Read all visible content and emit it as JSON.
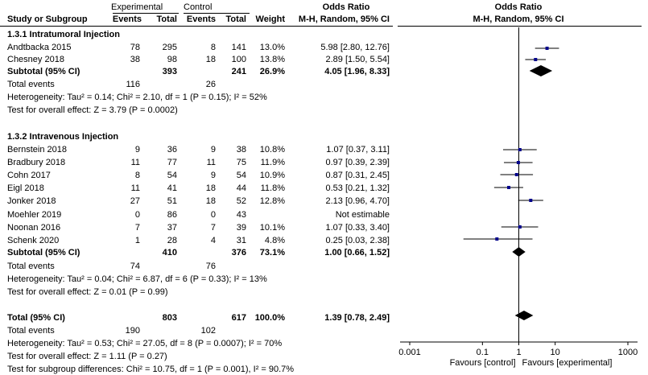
{
  "header": {
    "experimental": "Experimental",
    "control": "Control",
    "odds_ratio": "Odds Ratio",
    "odds_ratio_plot": "Odds Ratio",
    "study": "Study or Subgroup",
    "events": "Events",
    "total": "Total",
    "events2": "Events",
    "total2": "Total",
    "weight": "Weight",
    "method": "M-H, Random, 95% CI",
    "method_plot": "M-H, Random, 95% CI"
  },
  "groups": [
    {
      "title": "1.3.1 Intratumoral Injection",
      "studies": [
        {
          "name": "Andtbacka 2015",
          "e_ev": "78",
          "e_tot": "295",
          "c_ev": "8",
          "c_tot": "141",
          "weight": "13.0%",
          "ci_text": "5.98 [2.80, 12.76]"
        },
        {
          "name": "Chesney 2018",
          "e_ev": "38",
          "e_tot": "98",
          "c_ev": "18",
          "c_tot": "100",
          "weight": "13.8%",
          "ci_text": "2.89 [1.50, 5.54]"
        }
      ],
      "subtotal": {
        "label": "Subtotal (95% CI)",
        "e_tot": "393",
        "c_tot": "241",
        "weight": "26.9%",
        "ci_text": "4.05 [1.96, 8.33]"
      },
      "total_events": {
        "label": "Total events",
        "e": "116",
        "c": "26"
      },
      "heterogeneity": "Heterogeneity: Tau² = 0.14; Chi² = 2.10, df = 1 (P = 0.15); I² = 52%",
      "overall": "Test for overall effect: Z = 3.79 (P = 0.0002)"
    },
    {
      "title": "1.3.2 Intravenous Injection",
      "studies": [
        {
          "name": "Bernstein 2018",
          "e_ev": "9",
          "e_tot": "36",
          "c_ev": "9",
          "c_tot": "38",
          "weight": "10.8%",
          "ci_text": "1.07 [0.37, 3.11]"
        },
        {
          "name": "Bradbury 2018",
          "e_ev": "11",
          "e_tot": "77",
          "c_ev": "11",
          "c_tot": "75",
          "weight": "11.9%",
          "ci_text": "0.97 [0.39, 2.39]"
        },
        {
          "name": "Cohn 2017",
          "e_ev": "8",
          "e_tot": "54",
          "c_ev": "9",
          "c_tot": "54",
          "weight": "10.9%",
          "ci_text": "0.87 [0.31, 2.45]"
        },
        {
          "name": "Eigl 2018",
          "e_ev": "11",
          "e_tot": "41",
          "c_ev": "18",
          "c_tot": "44",
          "weight": "11.8%",
          "ci_text": "0.53 [0.21, 1.32]"
        },
        {
          "name": "Jonker 2018",
          "e_ev": "27",
          "e_tot": "51",
          "c_ev": "18",
          "c_tot": "52",
          "weight": "12.8%",
          "ci_text": "2.13 [0.96, 4.70]"
        },
        {
          "name": "Moehler 2019",
          "e_ev": "0",
          "e_tot": "86",
          "c_ev": "0",
          "c_tot": "43",
          "weight": "",
          "ci_text": "Not estimable"
        },
        {
          "name": "Noonan 2016",
          "e_ev": "7",
          "e_tot": "37",
          "c_ev": "7",
          "c_tot": "39",
          "weight": "10.1%",
          "ci_text": "1.07 [0.33, 3.40]"
        },
        {
          "name": "Schenk 2020",
          "e_ev": "1",
          "e_tot": "28",
          "c_ev": "4",
          "c_tot": "31",
          "weight": "4.8%",
          "ci_text": "0.25 [0.03, 2.38]"
        }
      ],
      "subtotal": {
        "label": "Subtotal (95% CI)",
        "e_tot": "410",
        "c_tot": "376",
        "weight": "73.1%",
        "ci_text": "1.00 [0.66, 1.52]"
      },
      "total_events": {
        "label": "Total events",
        "e": "74",
        "c": "76"
      },
      "heterogeneity": "Heterogeneity: Tau² = 0.04; Chi² = 6.87, df = 6 (P = 0.33); I² = 13%",
      "overall": "Test for overall effect: Z = 0.01 (P = 0.99)"
    }
  ],
  "total": {
    "label": "Total (95% CI)",
    "e_tot": "803",
    "c_tot": "617",
    "weight": "100.0%",
    "ci_text": "1.39 [0.78, 2.49]",
    "events_label": "Total events",
    "e_ev": "190",
    "c_ev": "102",
    "heterogeneity": "Heterogeneity: Tau² = 0.53; Chi² = 27.05, df = 8 (P = 0.0007); I² = 70%",
    "overall": "Test for overall effect: Z = 1.11 (P = 0.27)",
    "subgroup": "Test for subgroup differences: Chi² = 10.75, df = 1 (P = 0.001), I² = 90.7%"
  },
  "chart_data": {
    "type": "forest",
    "x_scale": "log",
    "xlim": [
      0.001,
      1000
    ],
    "ticks": [
      0.001,
      0.1,
      1,
      10,
      1000
    ],
    "tick_labels": [
      "0.001",
      "0.1",
      "1",
      "10",
      "1000"
    ],
    "xlabel_left": "Favours [control]",
    "xlabel_right": "Favours [experimental]",
    "studies": [
      {
        "name": "Andtbacka 2015",
        "or": 5.98,
        "lo": 2.8,
        "hi": 12.76
      },
      {
        "name": "Chesney 2018",
        "or": 2.89,
        "lo": 1.5,
        "hi": 5.54
      },
      {
        "name": "Bernstein 2018",
        "or": 1.07,
        "lo": 0.37,
        "hi": 3.11
      },
      {
        "name": "Bradbury 2018",
        "or": 0.97,
        "lo": 0.39,
        "hi": 2.39
      },
      {
        "name": "Cohn 2017",
        "or": 0.87,
        "lo": 0.31,
        "hi": 2.45
      },
      {
        "name": "Eigl 2018",
        "or": 0.53,
        "lo": 0.21,
        "hi": 1.32
      },
      {
        "name": "Jonker 2018",
        "or": 2.13,
        "lo": 0.96,
        "hi": 4.7
      },
      {
        "name": "Noonan 2016",
        "or": 1.07,
        "lo": 0.33,
        "hi": 3.4
      },
      {
        "name": "Schenk 2020",
        "or": 0.25,
        "lo": 0.03,
        "hi": 2.38
      }
    ],
    "diamonds": [
      {
        "name": "Subtotal 1.3.1",
        "or": 4.05,
        "lo": 1.96,
        "hi": 8.33
      },
      {
        "name": "Subtotal 1.3.2",
        "or": 1.0,
        "lo": 0.66,
        "hi": 1.52
      },
      {
        "name": "Total",
        "or": 1.39,
        "lo": 0.78,
        "hi": 2.49
      }
    ],
    "colors": {
      "marker": "#00008b",
      "lines": "#000000"
    }
  }
}
